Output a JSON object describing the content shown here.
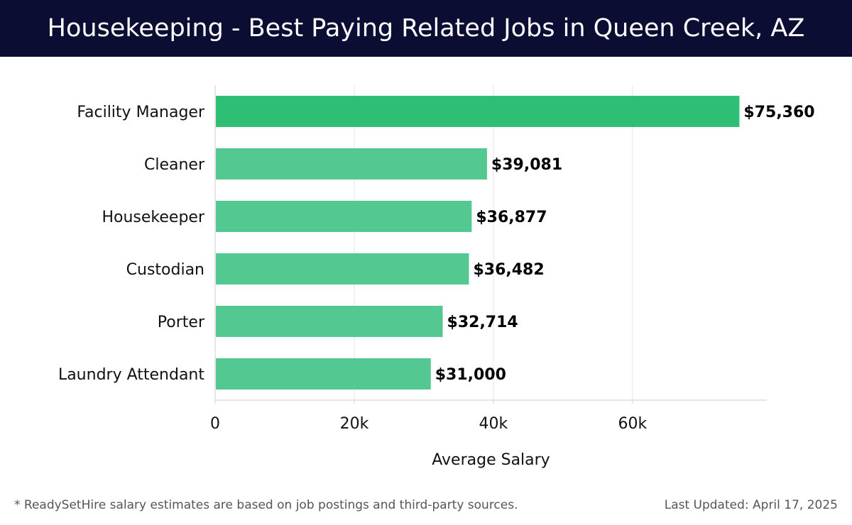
{
  "header": {
    "title": "Housekeeping - Best Paying Related Jobs in Queen Creek, AZ"
  },
  "footer": {
    "note": "* ReadySetHire salary estimates are based on job postings and third-party sources.",
    "updated": "Last Updated: April 17, 2025"
  },
  "colors": {
    "header_bg": "#0b0d33",
    "bar_top": "#2ebf75",
    "bar": "#53c991"
  },
  "chart_data": {
    "type": "bar",
    "orientation": "horizontal",
    "categories": [
      "Facility Manager",
      "Cleaner",
      "Housekeeper",
      "Custodian",
      "Porter",
      "Laundry Attendant"
    ],
    "values": [
      75360,
      39081,
      36877,
      36482,
      32714,
      31000
    ],
    "value_labels": [
      "$75,360",
      "$39,081",
      "$36,877",
      "$36,482",
      "$32,714",
      "$31,000"
    ],
    "xlabel": "Average Salary",
    "xlim": [
      0,
      79300
    ],
    "xticks": [
      0,
      20000,
      40000,
      60000
    ],
    "xtick_labels": [
      "0",
      "20k",
      "40k",
      "60k"
    ],
    "grid": true
  }
}
